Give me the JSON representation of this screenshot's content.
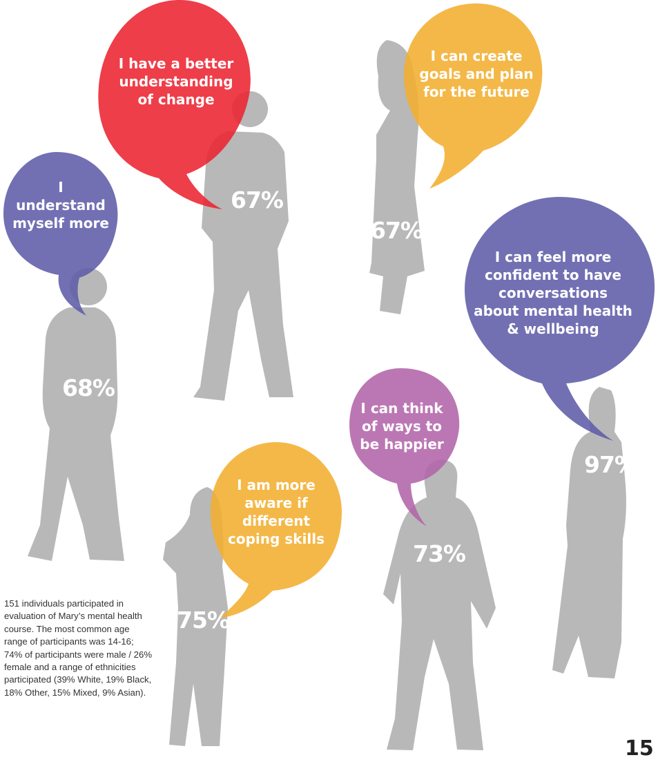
{
  "colors": {
    "red": "#ec2330",
    "amber": "#f2ae2f",
    "purple": "#5e5ca8",
    "magenta": "#b264a8",
    "silhouette": "#b8b8b8"
  },
  "figures": [
    {
      "id": "understand-myself",
      "statement": "I understand myself more",
      "percent": "68%",
      "color": "#5e5ca8"
    },
    {
      "id": "understanding-change",
      "statement": "I have a better understanding of change",
      "percent": "67%",
      "color": "#ec2330"
    },
    {
      "id": "goals-future",
      "statement": "I can create goals and plan for the future",
      "percent": "67%",
      "color": "#f2ae2f"
    },
    {
      "id": "confident-conversations",
      "statement": "I can feel more confident to have conversations about mental health & wellbeing",
      "percent": "97%",
      "color": "#5e5ca8"
    },
    {
      "id": "coping-skills",
      "statement": "I am more aware if different coping skills",
      "percent": "75%",
      "color": "#f2ae2f"
    },
    {
      "id": "ways-happier",
      "statement": "I can think of ways to be happier",
      "percent": "73%",
      "color": "#b264a8"
    }
  ],
  "intro": "151 individuals participated in evaluation of Mary’s mental health course. The most common age range of participants was 14-16; 74% of participants were male / 26% female and a range of ethnicities participated (39% White, 19% Black, 18% Other, 15% Mixed, 9% Asian).",
  "page_number": "15"
}
